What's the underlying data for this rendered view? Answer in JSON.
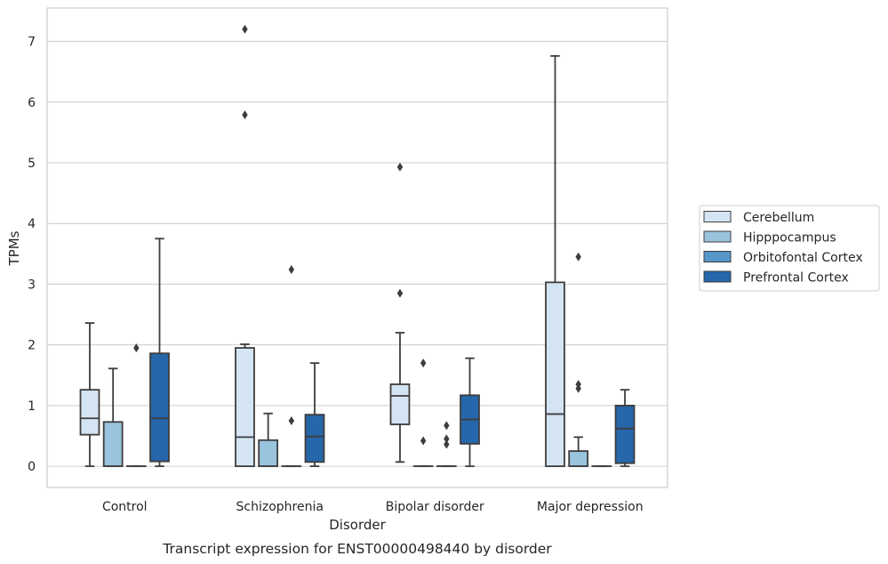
{
  "chart_data": {
    "type": "box",
    "xlabel": "Disorder",
    "ylabel": "TPMs",
    "caption": "Transcript expression for ENST00000498440 by disorder",
    "ylim": [
      -0.35,
      7.55
    ],
    "yticks": [
      0,
      1,
      2,
      3,
      4,
      5,
      6,
      7
    ],
    "grid": "horizontal",
    "legend_position": "right",
    "categories": [
      "Control",
      "Schizophrenia",
      "Bipolar disorder",
      "Major depression"
    ],
    "series": [
      {
        "name": "Cerebellum",
        "color": "#d4e4f3",
        "boxes": [
          {
            "whisker_low": 0.0,
            "q1": 0.52,
            "median": 0.79,
            "q3": 1.26,
            "whisker_high": 2.36,
            "outliers": []
          },
          {
            "whisker_low": 0.0,
            "q1": 0.0,
            "median": 0.48,
            "q3": 1.95,
            "whisker_high": 2.01,
            "outliers": [
              5.79,
              7.2
            ]
          },
          {
            "whisker_low": 0.07,
            "q1": 0.69,
            "median": 1.16,
            "q3": 1.35,
            "whisker_high": 2.2,
            "outliers": [
              2.85,
              4.93
            ]
          },
          {
            "whisker_low": 0.0,
            "q1": 0.0,
            "median": 0.86,
            "q3": 3.03,
            "whisker_high": 6.76,
            "outliers": []
          }
        ]
      },
      {
        "name": "Hipppocampus",
        "color": "#9ac3de",
        "boxes": [
          {
            "whisker_low": 0.0,
            "q1": 0.0,
            "median": 0.0,
            "q3": 0.73,
            "whisker_high": 1.61,
            "outliers": []
          },
          {
            "whisker_low": 0.0,
            "q1": 0.0,
            "median": 0.0,
            "q3": 0.43,
            "whisker_high": 0.87,
            "outliers": []
          },
          {
            "whisker_low": 0.0,
            "q1": 0.0,
            "median": 0.0,
            "q3": 0.0,
            "whisker_high": 0.0,
            "outliers": [
              0.42,
              1.7
            ]
          },
          {
            "whisker_low": 0.0,
            "q1": 0.0,
            "median": 0.0,
            "q3": 0.25,
            "whisker_high": 0.48,
            "outliers": [
              1.28,
              1.35,
              3.45
            ]
          }
        ]
      },
      {
        "name": "Orbitofontal Cortex",
        "color": "#5596c9",
        "boxes": [
          {
            "whisker_low": 0.0,
            "q1": 0.0,
            "median": 0.0,
            "q3": 0.0,
            "whisker_high": 0.0,
            "outliers": [
              1.95
            ]
          },
          {
            "whisker_low": 0.0,
            "q1": 0.0,
            "median": 0.0,
            "q3": 0.0,
            "whisker_high": 0.0,
            "outliers": [
              0.75,
              3.24
            ]
          },
          {
            "whisker_low": 0.0,
            "q1": 0.0,
            "median": 0.0,
            "q3": 0.0,
            "whisker_high": 0.0,
            "outliers": [
              0.36,
              0.45,
              0.67
            ]
          },
          {
            "whisker_low": 0.0,
            "q1": 0.0,
            "median": 0.0,
            "q3": 0.0,
            "whisker_high": 0.0,
            "outliers": []
          }
        ]
      },
      {
        "name": "Prefrontal Cortex",
        "color": "#2666aa",
        "boxes": [
          {
            "whisker_low": 0.0,
            "q1": 0.08,
            "median": 0.79,
            "q3": 1.86,
            "whisker_high": 3.75,
            "outliers": []
          },
          {
            "whisker_low": 0.0,
            "q1": 0.07,
            "median": 0.49,
            "q3": 0.85,
            "whisker_high": 1.7,
            "outliers": []
          },
          {
            "whisker_low": 0.0,
            "q1": 0.37,
            "median": 0.77,
            "q3": 1.17,
            "whisker_high": 1.78,
            "outliers": []
          },
          {
            "whisker_low": 0.0,
            "q1": 0.05,
            "median": 0.62,
            "q3": 1.0,
            "whisker_high": 1.26,
            "outliers": []
          }
        ]
      }
    ]
  }
}
